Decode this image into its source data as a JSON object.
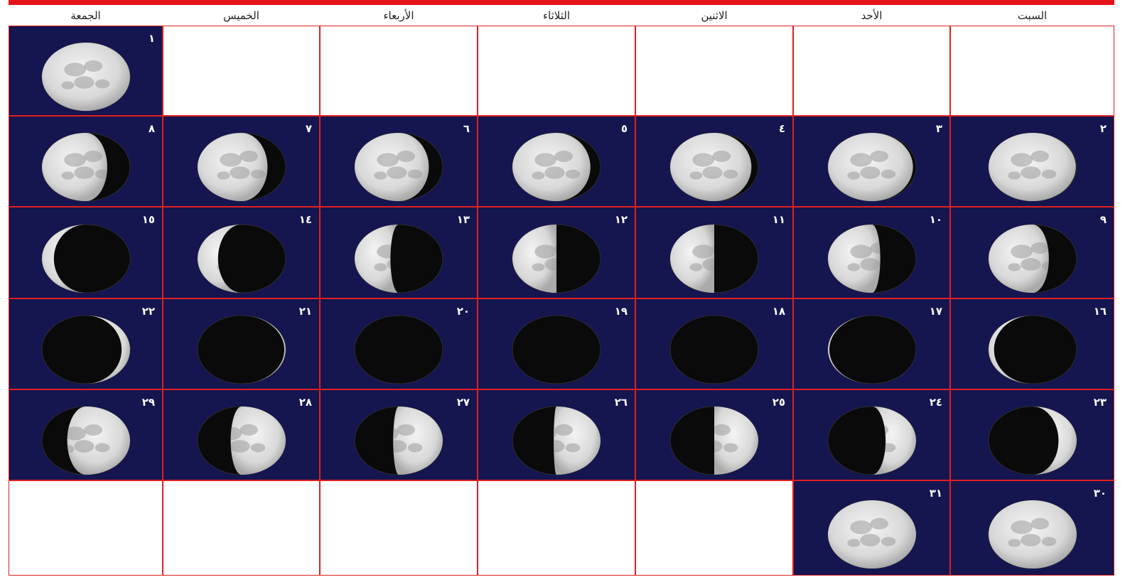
{
  "weekdays": [
    "السبت",
    "الأحد",
    "الاثنين",
    "الثلاثاء",
    "الأربعاء",
    "الخميس",
    "الجمعة"
  ],
  "colors": {
    "accent": "#e3141c",
    "cell_bg": "#15154f",
    "moon_light": "#e6e6e6",
    "moon_dark": "#0a0a0a"
  },
  "days": [
    {
      "label": "١",
      "phase": 0.5
    },
    {
      "label": "٢",
      "phase": 0.53
    },
    {
      "label": "٣",
      "phase": 0.56
    },
    {
      "label": "٤",
      "phase": 0.59
    },
    {
      "label": "٥",
      "phase": 0.61
    },
    {
      "label": "٦",
      "phase": 0.63
    },
    {
      "label": "٧",
      "phase": 0.65
    },
    {
      "label": "٨",
      "phase": 0.67
    },
    {
      "label": "٩",
      "phase": 0.69
    },
    {
      "label": "١٠",
      "phase": 0.72
    },
    {
      "label": "١١",
      "phase": 0.75
    },
    {
      "label": "١٢",
      "phase": 0.75
    },
    {
      "label": "١٣",
      "phase": 0.78
    },
    {
      "label": "١٤",
      "phase": 0.84
    },
    {
      "label": "١٥",
      "phase": 0.88
    },
    {
      "label": "١٦",
      "phase": 0.92
    },
    {
      "label": "١٧",
      "phase": 0.96
    },
    {
      "label": "١٨",
      "phase": 0.0
    },
    {
      "label": "١٩",
      "phase": 0.0
    },
    {
      "label": "٢٠",
      "phase": 0.0
    },
    {
      "label": "٢١",
      "phase": 0.04
    },
    {
      "label": "٢٢",
      "phase": 0.1
    },
    {
      "label": "٢٣",
      "phase": 0.15
    },
    {
      "label": "٢٤",
      "phase": 0.2
    },
    {
      "label": "٢٥",
      "phase": 0.25
    },
    {
      "label": "٢٦",
      "phase": 0.26
    },
    {
      "label": "٢٧",
      "phase": 0.27
    },
    {
      "label": "٢٨",
      "phase": 0.29
    },
    {
      "label": "٢٩",
      "phase": 0.32
    },
    {
      "label": "٣٠",
      "phase": 0.5
    },
    {
      "label": "٣١",
      "phase": 0.5
    }
  ]
}
